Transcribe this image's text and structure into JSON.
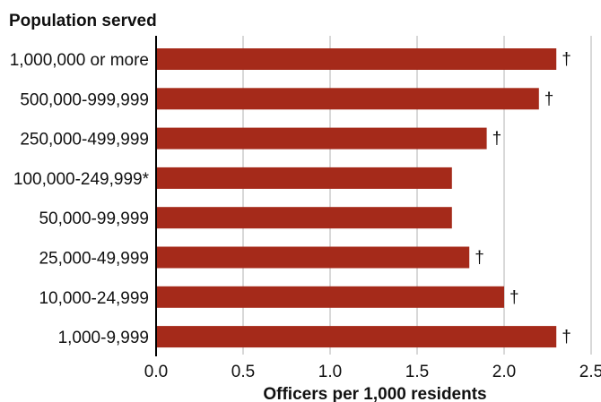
{
  "chart_data": {
    "type": "bar",
    "orientation": "horizontal",
    "ylabel": "Population served",
    "xlabel": "Officers per 1,000 residents",
    "categories": [
      "1,000,000 or more",
      "500,000-999,999",
      "250,000-499,999",
      "100,000-249,999*",
      "50,000-99,999",
      "25,000-49,999",
      "10,000-24,999",
      "1,000-9,999"
    ],
    "values": [
      2.3,
      2.2,
      1.9,
      1.7,
      1.7,
      1.8,
      2.0,
      2.3
    ],
    "markers": [
      "†",
      "†",
      "†",
      "",
      "",
      "†",
      "†",
      "†"
    ],
    "xlim": [
      0,
      2.5
    ],
    "xticks": [
      "0.0",
      "0.5",
      "1.0",
      "1.5",
      "2.0",
      "2.5"
    ],
    "grid": "vertical",
    "colors": {
      "bar": "#a52a1a",
      "grid": "#b0b0b0",
      "axis": "#000000"
    }
  }
}
